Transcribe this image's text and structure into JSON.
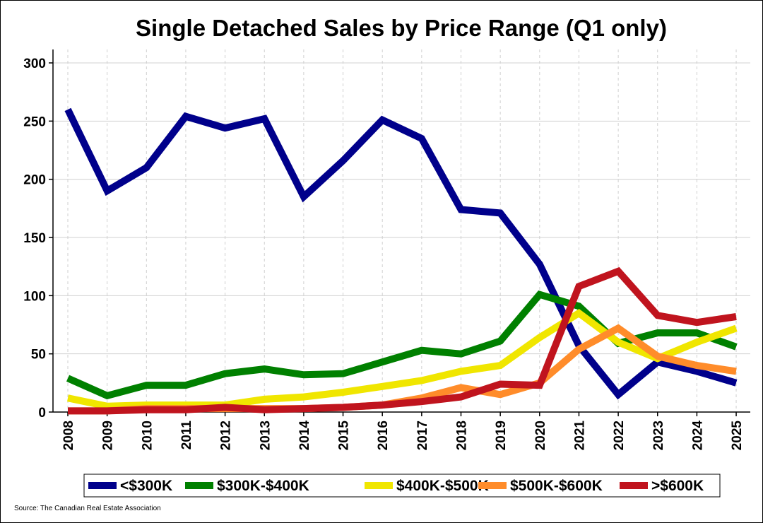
{
  "chart_data": {
    "type": "line",
    "title": "Single Detached Sales by Price Range (Q1 only)",
    "xlabel": "",
    "ylabel": "",
    "x": [
      "2008",
      "2009",
      "2010",
      "2011",
      "2012",
      "2013",
      "2014",
      "2015",
      "2016",
      "2017",
      "2018",
      "2019",
      "2020",
      "2021",
      "2022",
      "2023",
      "2024",
      "2025"
    ],
    "ylim": [
      0,
      300
    ],
    "yticks": [
      0,
      50,
      100,
      150,
      200,
      250,
      300
    ],
    "grid": true,
    "legend_position": "bottom",
    "series": [
      {
        "name": "<$300K",
        "color": "#00008b",
        "values": [
          260,
          190,
          210,
          254,
          244,
          252,
          185,
          216,
          251,
          235,
          174,
          171,
          127,
          57,
          15,
          43,
          35,
          25
        ]
      },
      {
        "name": "$300K-$400K",
        "color": "#008000",
        "values": [
          29,
          14,
          23,
          23,
          33,
          37,
          32,
          33,
          43,
          53,
          50,
          61,
          101,
          91,
          59,
          68,
          68,
          56
        ]
      },
      {
        "name": "$400K-$500K",
        "color": "#f0e600",
        "values": [
          12,
          5,
          6,
          6,
          6,
          11,
          13,
          17,
          22,
          27,
          35,
          40,
          64,
          85,
          60,
          46,
          60,
          72
        ]
      },
      {
        "name": "$500K-$600K",
        "color": "#ff8c2a",
        "values": [
          1,
          1,
          3,
          3,
          3,
          3,
          3,
          4,
          6,
          12,
          21,
          15,
          25,
          54,
          72,
          48,
          40,
          35
        ]
      },
      {
        "name": ">$600K",
        "color": "#c0141e",
        "values": [
          1,
          1,
          2,
          2,
          4,
          2,
          3,
          4,
          6,
          9,
          13,
          24,
          23,
          108,
          121,
          83,
          77,
          82
        ]
      }
    ]
  },
  "source": "Source: The Canadian Real Estate Association"
}
